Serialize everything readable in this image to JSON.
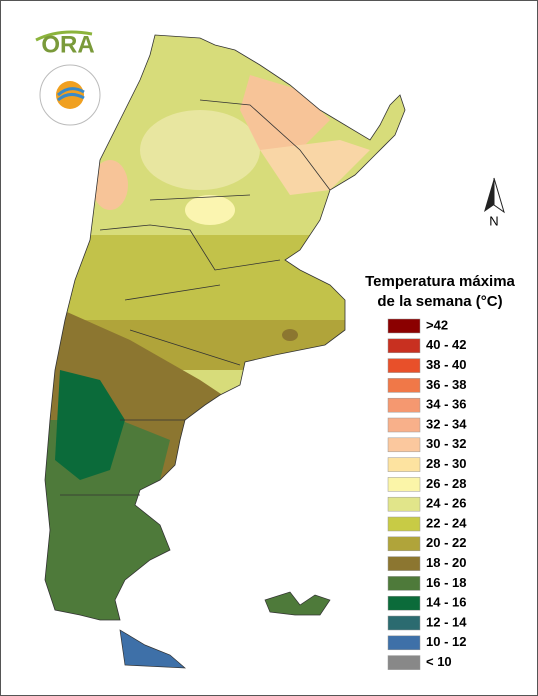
{
  "logo": {
    "text": "ORA"
  },
  "compass": {
    "label": "N"
  },
  "legend": {
    "title_lines": [
      "Temperatura máxima",
      "de la semana (°C)"
    ],
    "items": [
      {
        "label": ">42",
        "color": "#8b0000"
      },
      {
        "label": "40 - 42",
        "color": "#c83020"
      },
      {
        "label": "38 - 40",
        "color": "#e8502a"
      },
      {
        "label": "36 - 38",
        "color": "#f07848"
      },
      {
        "label": "34 - 36",
        "color": "#f59870"
      },
      {
        "label": "32 - 34",
        "color": "#f8b08a"
      },
      {
        "label": "30 - 32",
        "color": "#fbc89e"
      },
      {
        "label": "28 - 30",
        "color": "#fde3a0"
      },
      {
        "label": "26 - 28",
        "color": "#fbf5a8"
      },
      {
        "label": "24 - 26",
        "color": "#e1e58a"
      },
      {
        "label": "22 - 24",
        "color": "#c8cb45"
      },
      {
        "label": "20 - 22",
        "color": "#b0a43a"
      },
      {
        "label": "18 - 20",
        "color": "#8c7630"
      },
      {
        "label": "16 - 18",
        "color": "#4e7a3a"
      },
      {
        "label": "14 - 16",
        "color": "#0b6b3a"
      },
      {
        "label": "12 - 14",
        "color": "#2b6b70"
      },
      {
        "label": "10 - 12",
        "color": "#3e70a8"
      },
      {
        "label": "< 10",
        "color": "#888888"
      }
    ]
  }
}
